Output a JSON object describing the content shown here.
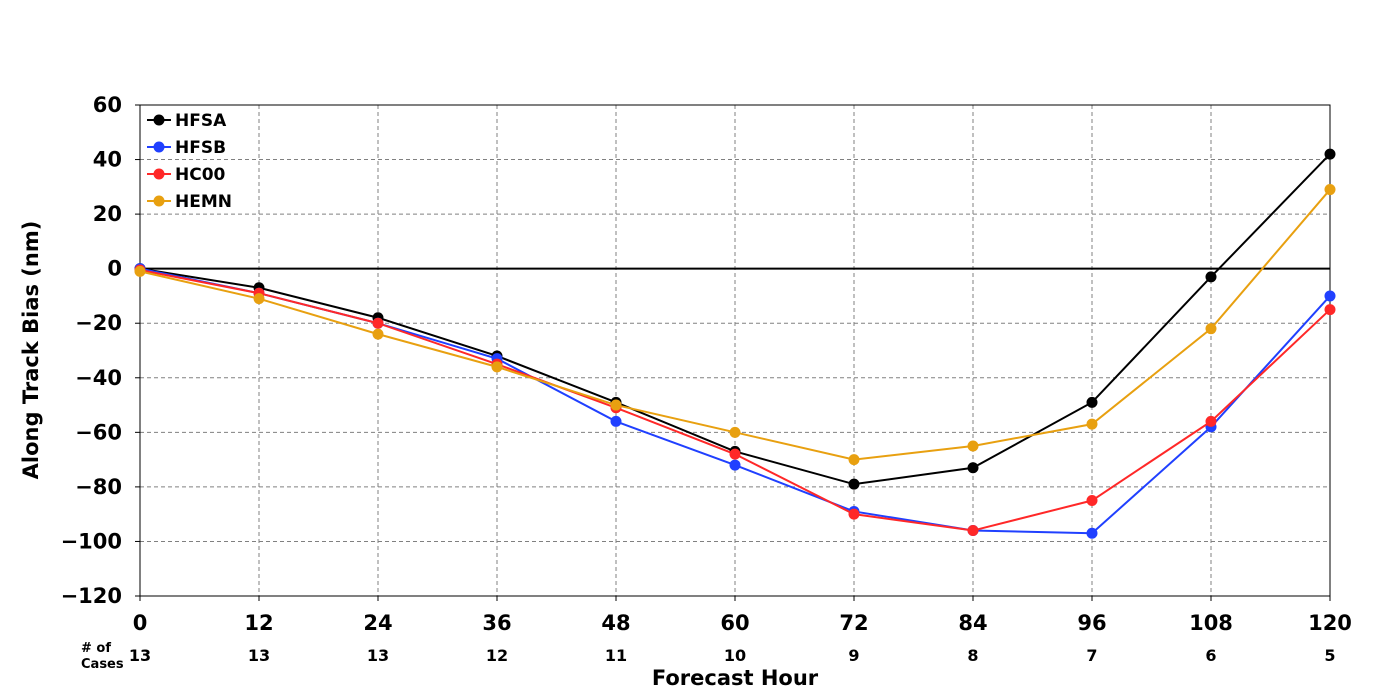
{
  "chart_data": {
    "type": "line",
    "xlabel": "Forecast Hour",
    "ylabel": "Along Track Bias (nm)",
    "x": [
      0,
      12,
      24,
      36,
      48,
      60,
      72,
      84,
      96,
      108,
      120
    ],
    "xlim": [
      0,
      120
    ],
    "ylim": [
      -120,
      60
    ],
    "y_ticks": [
      60,
      40,
      20,
      0,
      -20,
      -40,
      -60,
      -80,
      -100,
      -120
    ],
    "y_tick_labels": [
      "60",
      "40",
      "20",
      "0",
      "−20",
      "−40",
      "−60",
      "−80",
      "−100",
      "−120"
    ],
    "x_tick_labels": [
      "0",
      "12",
      "24",
      "36",
      "48",
      "60",
      "72",
      "84",
      "96",
      "108",
      "120"
    ],
    "grid": true,
    "legend_position": "top-left",
    "cases_label_line1": "# of",
    "cases_label_line2": "Cases",
    "cases": [
      "13",
      "13",
      "13",
      "12",
      "11",
      "10",
      "9",
      "8",
      "7",
      "6",
      "5"
    ],
    "series": [
      {
        "name": "HFSA",
        "color": "#000000",
        "values": [
          0,
          -7,
          -18,
          -32,
          -49,
          -67,
          -79,
          -73,
          -49,
          -3,
          42
        ]
      },
      {
        "name": "HFSB",
        "color": "#2040ff",
        "values": [
          0,
          -9,
          -20,
          -33,
          -56,
          -72,
          -89,
          -96,
          -97,
          -58,
          -10
        ]
      },
      {
        "name": "HC00",
        "color": "#ff2828",
        "values": [
          -0.5,
          -9,
          -20,
          -35,
          -51,
          -68,
          -90,
          -96,
          -85,
          -56,
          -15
        ]
      },
      {
        "name": "HEMN",
        "color": "#e8a010",
        "values": [
          -1,
          -11,
          -24,
          -36,
          -50,
          -60,
          -70,
          -65,
          -57,
          -22,
          29
        ]
      }
    ]
  }
}
